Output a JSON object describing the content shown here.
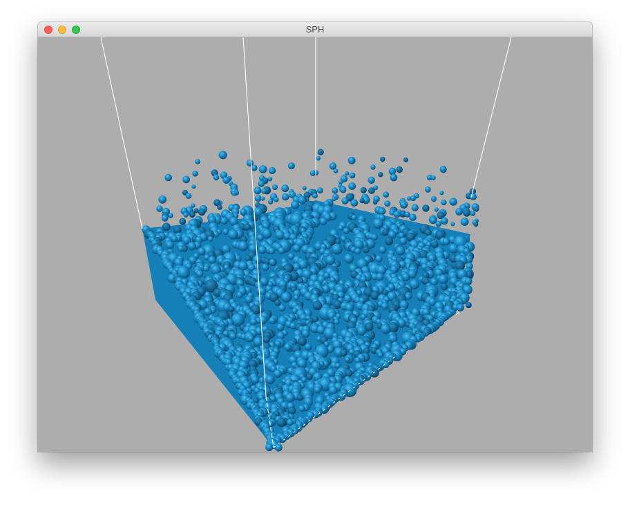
{
  "window": {
    "title": "SPH",
    "buttons": {
      "close": "close",
      "minimize": "minimize",
      "zoom": "zoom"
    }
  },
  "scene": {
    "background_color": "#adadad",
    "particle_color": "#1a8ac6",
    "particle_highlight": "#34aee6",
    "particle_shadow": "#0b4c73",
    "container_edge_color": "#ffffff"
  }
}
